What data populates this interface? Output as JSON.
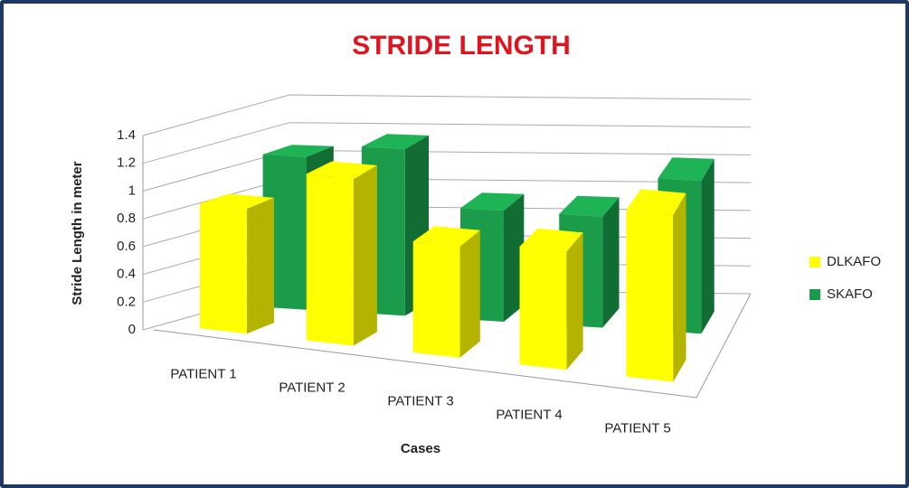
{
  "chart_data": {
    "type": "bar3d",
    "title": "STRIDE LENGTH",
    "x_label": "Cases",
    "y_label": "Stride Length in meter",
    "categories": [
      "PATIENT 1",
      "PATIENT 2",
      "PATIENT 3",
      "PATIENT 4",
      "PATIENT 5"
    ],
    "series": [
      {
        "name": "DLKAFO",
        "color": "#ffff00",
        "values": [
          0.9,
          1.2,
          0.8,
          0.85,
          1.2
        ]
      },
      {
        "name": "SKAFO",
        "color": "#1a9c4a",
        "values": [
          1.1,
          1.2,
          0.8,
          0.8,
          1.1
        ]
      }
    ],
    "ylim": [
      0,
      1.4
    ],
    "yticks": [
      0,
      0.2,
      0.4,
      0.6,
      0.8,
      1,
      1.2,
      1.4
    ],
    "grid": true,
    "legend": "right"
  }
}
